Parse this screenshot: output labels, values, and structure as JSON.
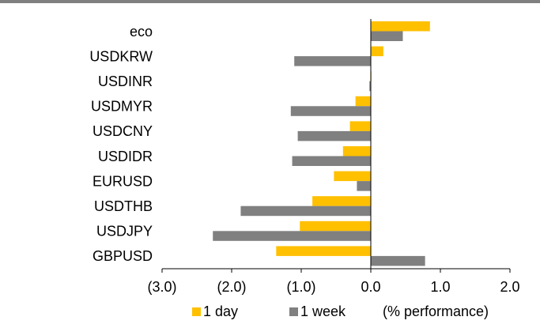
{
  "chart_data": {
    "type": "bar",
    "orientation": "horizontal",
    "categories": [
      "eco",
      "USDKRW",
      "USDINR",
      "USDMYR",
      "USDCNY",
      "USDIDR",
      "EURUSD",
      "USDTHB",
      "USDJPY",
      "GBPUSD"
    ],
    "series": [
      {
        "name": "1 day",
        "color": "#FFC000",
        "values": [
          0.85,
          0.18,
          0.01,
          -0.22,
          -0.3,
          -0.4,
          -0.53,
          -0.84,
          -1.02,
          -1.36
        ]
      },
      {
        "name": "1 week",
        "color": "#808080",
        "values": [
          0.46,
          -1.1,
          -0.02,
          -1.15,
          -1.05,
          -1.13,
          -0.2,
          -1.87,
          -2.27,
          0.78
        ]
      }
    ],
    "xlim": [
      -3.0,
      2.0
    ],
    "xticks": [
      -3.0,
      -2.0,
      -1.0,
      0.0,
      1.0,
      2.0
    ],
    "xtick_labels": [
      "(3.0)",
      "(2.0)",
      "(1.0)",
      "0.0",
      "1.0",
      "2.0"
    ],
    "unit_note": "(% performance)",
    "grid": false,
    "legend_position": "bottom"
  }
}
